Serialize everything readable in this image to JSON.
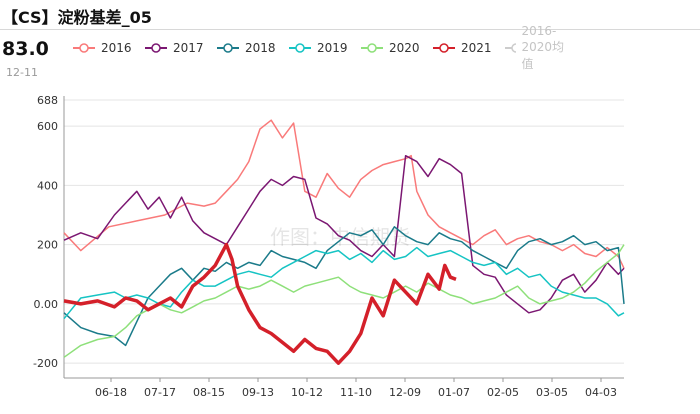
{
  "header": {
    "title": "【CS】淀粉基差_05",
    "latest_value": "83.0",
    "latest_date": "12-11"
  },
  "watermark": "作图：中信期货",
  "chart_data": {
    "type": "line",
    "ylim": [
      -250,
      688
    ],
    "y_ticks": [
      -200,
      "0.00",
      200,
      400,
      600,
      688
    ],
    "x_ticks": [
      "06-18",
      "07-17",
      "08-15",
      "09-13",
      "10-12",
      "11-10",
      "12-09",
      "01-07",
      "02-05",
      "03-05",
      "04-03"
    ],
    "grid": true,
    "legend_position": "top",
    "series": [
      {
        "name": "2016",
        "color": "#f97a7a",
        "width": 1.5,
        "points": [
          [
            0,
            240
          ],
          [
            3,
            180
          ],
          [
            8,
            260
          ],
          [
            13,
            280
          ],
          [
            18,
            300
          ],
          [
            22,
            340
          ],
          [
            25,
            330
          ],
          [
            27,
            340
          ],
          [
            29,
            380
          ],
          [
            31,
            420
          ],
          [
            33,
            480
          ],
          [
            35,
            590
          ],
          [
            37,
            620
          ],
          [
            39,
            560
          ],
          [
            41,
            610
          ],
          [
            43,
            380
          ],
          [
            45,
            360
          ],
          [
            47,
            440
          ],
          [
            49,
            390
          ],
          [
            51,
            360
          ],
          [
            53,
            420
          ],
          [
            55,
            450
          ],
          [
            57,
            470
          ],
          [
            59,
            480
          ],
          [
            61,
            490
          ],
          [
            62,
            500
          ],
          [
            63,
            380
          ],
          [
            65,
            300
          ],
          [
            67,
            260
          ],
          [
            69,
            240
          ],
          [
            71,
            220
          ],
          [
            73,
            200
          ],
          [
            75,
            230
          ],
          [
            77,
            250
          ],
          [
            79,
            200
          ],
          [
            81,
            220
          ],
          [
            83,
            230
          ],
          [
            85,
            210
          ],
          [
            87,
            200
          ],
          [
            89,
            180
          ],
          [
            91,
            200
          ],
          [
            93,
            170
          ],
          [
            95,
            160
          ],
          [
            97,
            190
          ],
          [
            99,
            160
          ],
          [
            100,
            120
          ]
        ]
      },
      {
        "name": "2017",
        "color": "#7b1772",
        "width": 1.5,
        "points": [
          [
            0,
            215
          ],
          [
            3,
            240
          ],
          [
            6,
            220
          ],
          [
            9,
            300
          ],
          [
            11,
            340
          ],
          [
            13,
            380
          ],
          [
            15,
            320
          ],
          [
            17,
            360
          ],
          [
            19,
            290
          ],
          [
            21,
            360
          ],
          [
            23,
            280
          ],
          [
            25,
            240
          ],
          [
            27,
            220
          ],
          [
            29,
            200
          ],
          [
            31,
            260
          ],
          [
            33,
            320
          ],
          [
            35,
            380
          ],
          [
            37,
            420
          ],
          [
            39,
            400
          ],
          [
            41,
            430
          ],
          [
            43,
            420
          ],
          [
            45,
            290
          ],
          [
            47,
            270
          ],
          [
            49,
            230
          ],
          [
            51,
            215
          ],
          [
            53,
            180
          ],
          [
            55,
            160
          ],
          [
            57,
            200
          ],
          [
            59,
            160
          ],
          [
            61,
            500
          ],
          [
            63,
            480
          ],
          [
            65,
            430
          ],
          [
            67,
            490
          ],
          [
            69,
            470
          ],
          [
            71,
            440
          ],
          [
            73,
            130
          ],
          [
            75,
            100
          ],
          [
            77,
            90
          ],
          [
            79,
            30
          ],
          [
            81,
            0
          ],
          [
            83,
            -30
          ],
          [
            85,
            -20
          ],
          [
            87,
            20
          ],
          [
            89,
            80
          ],
          [
            91,
            100
          ],
          [
            93,
            40
          ],
          [
            95,
            80
          ],
          [
            97,
            140
          ],
          [
            99,
            100
          ],
          [
            100,
            120
          ]
        ]
      },
      {
        "name": "2018",
        "color": "#1b7b8a",
        "width": 1.5,
        "points": [
          [
            0,
            -30
          ],
          [
            3,
            -80
          ],
          [
            6,
            -100
          ],
          [
            9,
            -110
          ],
          [
            11,
            -140
          ],
          [
            13,
            -60
          ],
          [
            15,
            20
          ],
          [
            17,
            60
          ],
          [
            19,
            100
          ],
          [
            21,
            120
          ],
          [
            23,
            80
          ],
          [
            25,
            120
          ],
          [
            27,
            110
          ],
          [
            29,
            140
          ],
          [
            31,
            120
          ],
          [
            33,
            140
          ],
          [
            35,
            130
          ],
          [
            37,
            180
          ],
          [
            39,
            160
          ],
          [
            41,
            150
          ],
          [
            43,
            140
          ],
          [
            45,
            120
          ],
          [
            47,
            180
          ],
          [
            49,
            210
          ],
          [
            51,
            240
          ],
          [
            53,
            230
          ],
          [
            55,
            250
          ],
          [
            57,
            200
          ],
          [
            59,
            260
          ],
          [
            61,
            230
          ],
          [
            63,
            210
          ],
          [
            65,
            200
          ],
          [
            67,
            240
          ],
          [
            69,
            220
          ],
          [
            71,
            210
          ],
          [
            73,
            180
          ],
          [
            75,
            160
          ],
          [
            77,
            140
          ],
          [
            79,
            120
          ],
          [
            81,
            180
          ],
          [
            83,
            210
          ],
          [
            85,
            220
          ],
          [
            87,
            200
          ],
          [
            89,
            210
          ],
          [
            91,
            230
          ],
          [
            93,
            200
          ],
          [
            95,
            210
          ],
          [
            97,
            180
          ],
          [
            99,
            190
          ],
          [
            100,
            0
          ]
        ]
      },
      {
        "name": "2019",
        "color": "#16c4c4",
        "width": 1.5,
        "points": [
          [
            0,
            -50
          ],
          [
            3,
            20
          ],
          [
            6,
            30
          ],
          [
            9,
            40
          ],
          [
            11,
            20
          ],
          [
            13,
            30
          ],
          [
            15,
            20
          ],
          [
            17,
            0
          ],
          [
            19,
            -10
          ],
          [
            21,
            40
          ],
          [
            23,
            80
          ],
          [
            25,
            60
          ],
          [
            27,
            60
          ],
          [
            29,
            80
          ],
          [
            31,
            100
          ],
          [
            33,
            110
          ],
          [
            35,
            100
          ],
          [
            37,
            90
          ],
          [
            39,
            120
          ],
          [
            41,
            140
          ],
          [
            43,
            160
          ],
          [
            45,
            180
          ],
          [
            47,
            170
          ],
          [
            49,
            180
          ],
          [
            51,
            150
          ],
          [
            53,
            170
          ],
          [
            55,
            140
          ],
          [
            57,
            180
          ],
          [
            59,
            150
          ],
          [
            61,
            160
          ],
          [
            63,
            190
          ],
          [
            65,
            160
          ],
          [
            67,
            170
          ],
          [
            69,
            180
          ],
          [
            71,
            160
          ],
          [
            73,
            140
          ],
          [
            75,
            130
          ],
          [
            77,
            140
          ],
          [
            79,
            100
          ],
          [
            81,
            120
          ],
          [
            83,
            90
          ],
          [
            85,
            100
          ],
          [
            87,
            60
          ],
          [
            89,
            40
          ],
          [
            91,
            30
          ],
          [
            93,
            20
          ],
          [
            95,
            20
          ],
          [
            97,
            0
          ],
          [
            99,
            -40
          ],
          [
            100,
            -30
          ]
        ]
      },
      {
        "name": "2020",
        "color": "#8ee07a",
        "width": 1.5,
        "points": [
          [
            0,
            -180
          ],
          [
            3,
            -140
          ],
          [
            6,
            -120
          ],
          [
            9,
            -110
          ],
          [
            11,
            -80
          ],
          [
            13,
            -40
          ],
          [
            15,
            -20
          ],
          [
            17,
            0
          ],
          [
            19,
            -20
          ],
          [
            21,
            -30
          ],
          [
            23,
            -10
          ],
          [
            25,
            10
          ],
          [
            27,
            20
          ],
          [
            29,
            40
          ],
          [
            31,
            60
          ],
          [
            33,
            50
          ],
          [
            35,
            60
          ],
          [
            37,
            80
          ],
          [
            39,
            60
          ],
          [
            41,
            40
          ],
          [
            43,
            60
          ],
          [
            45,
            70
          ],
          [
            47,
            80
          ],
          [
            49,
            90
          ],
          [
            51,
            60
          ],
          [
            53,
            40
          ],
          [
            55,
            30
          ],
          [
            57,
            20
          ],
          [
            59,
            40
          ],
          [
            61,
            60
          ],
          [
            63,
            40
          ],
          [
            65,
            70
          ],
          [
            67,
            50
          ],
          [
            69,
            30
          ],
          [
            71,
            20
          ],
          [
            73,
            0
          ],
          [
            75,
            10
          ],
          [
            77,
            20
          ],
          [
            79,
            40
          ],
          [
            81,
            60
          ],
          [
            83,
            20
          ],
          [
            85,
            0
          ],
          [
            87,
            10
          ],
          [
            89,
            20
          ],
          [
            91,
            40
          ],
          [
            93,
            70
          ],
          [
            95,
            110
          ],
          [
            97,
            140
          ],
          [
            99,
            170
          ],
          [
            100,
            200
          ]
        ]
      },
      {
        "name": "2021",
        "color": "#d4202a",
        "width": 3.5,
        "points": [
          [
            0,
            10
          ],
          [
            3,
            0
          ],
          [
            6,
            10
          ],
          [
            9,
            -10
          ],
          [
            11,
            20
          ],
          [
            13,
            10
          ],
          [
            15,
            -20
          ],
          [
            17,
            0
          ],
          [
            19,
            20
          ],
          [
            21,
            -10
          ],
          [
            23,
            60
          ],
          [
            25,
            90
          ],
          [
            27,
            130
          ],
          [
            29,
            200
          ],
          [
            30,
            150
          ],
          [
            31,
            60
          ],
          [
            33,
            -20
          ],
          [
            35,
            -80
          ],
          [
            37,
            -100
          ],
          [
            39,
            -130
          ],
          [
            41,
            -160
          ],
          [
            43,
            -120
          ],
          [
            45,
            -150
          ],
          [
            47,
            -160
          ],
          [
            49,
            -200
          ],
          [
            51,
            -160
          ],
          [
            53,
            -100
          ],
          [
            55,
            20
          ],
          [
            57,
            -40
          ],
          [
            59,
            80
          ],
          [
            61,
            40
          ],
          [
            63,
            0
          ],
          [
            65,
            100
          ],
          [
            67,
            50
          ],
          [
            68,
            130
          ],
          [
            69,
            90
          ],
          [
            70,
            83
          ]
        ]
      },
      {
        "name": "2016-2020均值",
        "color": "#d0d0d0",
        "width": 1.2,
        "hidden": true,
        "points": []
      }
    ]
  }
}
